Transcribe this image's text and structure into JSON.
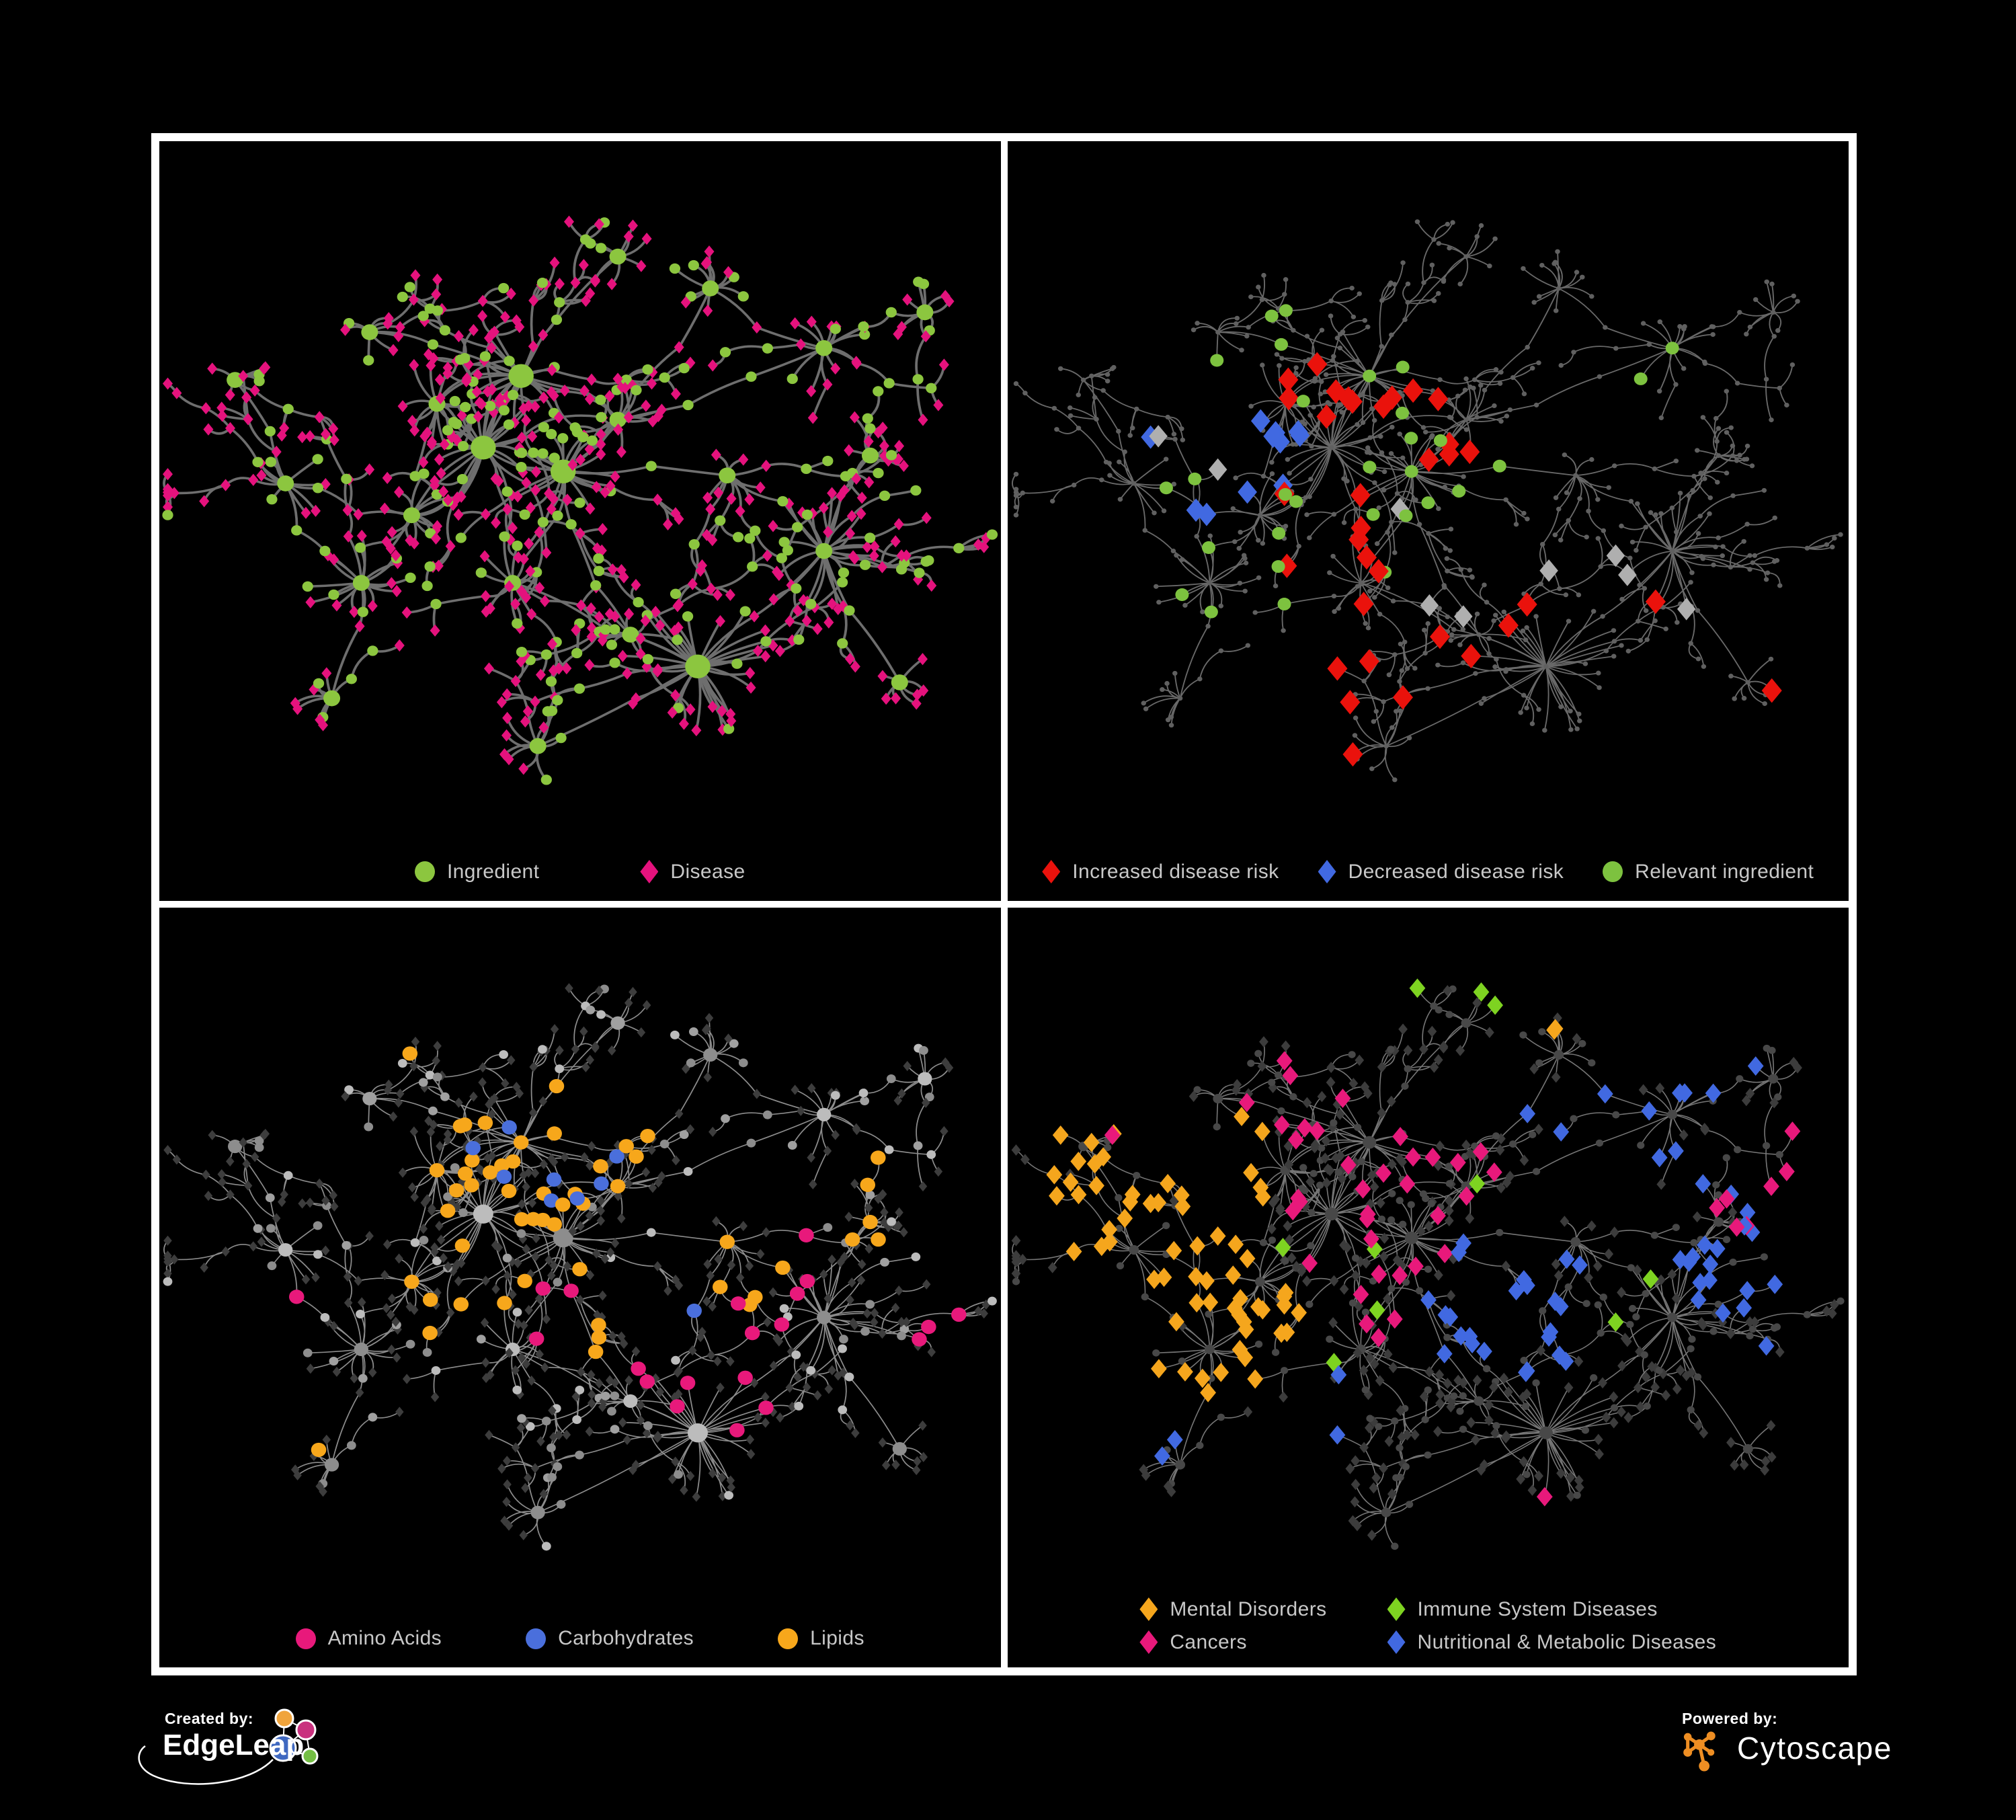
{
  "poster": {
    "background": "#000000",
    "frame_color": "#ffffff",
    "legend_text_color": "#C8C8C8"
  },
  "footer": {
    "created_by": "Created by:",
    "edgeleap_wordmark": "EdgeLeap",
    "powered_by": "Powered by:",
    "cytoscape_wordmark": "Cytoscape",
    "edgeleap_logo_colors": [
      "#F0A43C",
      "#C9317E",
      "#3F68C0",
      "#74BE44"
    ],
    "cytoscape_logo_color": "#EE8E23"
  },
  "chart_data": [
    {
      "type": "network",
      "panel": "top-left",
      "description": "Ingredient-disease association network",
      "legend": [
        {
          "label": "Ingredient",
          "shape": "circle",
          "color": "#8CC63F"
        },
        {
          "label": "Disease",
          "shape": "diamond",
          "color": "#E5127D"
        }
      ],
      "style": {
        "edge": "#6E6E6E",
        "edgeW": 3,
        "circle": {
          "color": "#8CC63F",
          "r": 6.5,
          "rMid": 10,
          "rHub": 15
        },
        "diamond": {
          "color": "#E5127D",
          "r": 6
        }
      }
    },
    {
      "type": "network",
      "panel": "top-right",
      "description": "Disease risk highlights on the same network",
      "legend": [
        {
          "label": "Increased disease risk",
          "shape": "diamond",
          "color": "#EA120C"
        },
        {
          "label": "Decreased disease risk",
          "shape": "diamond",
          "color": "#4169E1"
        },
        {
          "label": "Relevant ingredient",
          "shape": "circle",
          "color": "#7DC23F"
        }
      ],
      "style": {
        "edge": "#696969",
        "edgeW": 1.5,
        "mode": "dots",
        "base": {
          "color": "#606060",
          "r": 3
        },
        "highlights": [
          {
            "shape": "diamond",
            "color": "#EA120C",
            "r": 12,
            "count": 34,
            "regions": [
              [
                470,
                500,
                160
              ],
              [
                640,
                590,
                120
              ],
              [
                460,
                700,
                90
              ],
              [
                735,
                600,
                60
              ],
              [
                905,
                300,
                50
              ],
              [
                430,
                350,
                120
              ],
              [
                880,
                690,
                70
              ]
            ]
          },
          {
            "shape": "diamond",
            "color": "#4169E1",
            "r": 11.5,
            "count": 11,
            "regions": [
              [
                255,
                390,
                95
              ],
              [
                823,
                300,
                50
              ]
            ]
          },
          {
            "shape": "diamond",
            "color": "#AFAFAF",
            "r": 11,
            "count": 9,
            "regions": [
              [
                230,
                430,
                100
              ],
              [
                450,
                550,
                110
              ],
              [
                740,
                560,
                100
              ],
              [
                620,
                330,
                70
              ]
            ]
          },
          {
            "shape": "circle",
            "color": "#7DC23F",
            "r": 8,
            "count": 30,
            "regions": [
              [
                370,
                420,
                220
              ],
              [
                789,
                312,
                60
              ],
              [
                763,
                618,
                60
              ],
              [
                200,
                560,
                110
              ],
              [
                90,
                300,
                55
              ]
            ]
          }
        ]
      }
    },
    {
      "type": "network",
      "panel": "bottom-left",
      "description": "Nutrient class highlights",
      "legend": [
        {
          "label": "Amino Acids",
          "shape": "circle",
          "color": "#E8197B"
        },
        {
          "label": "Carbohydrates",
          "shape": "circle",
          "color": "#4A6FDC"
        },
        {
          "label": "Lipids",
          "shape": "circle",
          "color": "#F7A71B"
        }
      ],
      "style": {
        "edge": "#8C8C8C",
        "edgeW": 1.4,
        "circle": {
          "colors": [
            "#BcBcBc",
            "#A0A0A0",
            "#8D8D8D"
          ],
          "color": "#A0A0A0",
          "r": 5.5,
          "rMid": 8.5,
          "rHub": 12
        },
        "diamond": {
          "color": "#3D3D3D",
          "r": 5
        },
        "highlights": [
          {
            "shape": "circle",
            "color": "#F7A71B",
            "r": 9,
            "count": 52,
            "regions": [
              [
                470,
                330,
                120
              ],
              [
                430,
                340,
                110
              ],
              [
                350,
                430,
                110
              ],
              [
                540,
                490,
                90
              ],
              [
                631,
                755,
                70
              ],
              [
                260,
                120,
                80
              ],
              [
                850,
                390,
                80
              ],
              [
                940,
                140,
                40
              ],
              [
                175,
                690,
                50
              ],
              [
                670,
                460,
                80
              ]
            ]
          },
          {
            "shape": "circle",
            "color": "#4A6FDC",
            "r": 9,
            "count": 13,
            "regions": [
              [
                460,
                300,
                90
              ],
              [
                637,
                480,
                50
              ],
              [
                129,
                185,
                40
              ]
            ]
          },
          {
            "shape": "circle",
            "color": "#E8197B",
            "r": 9,
            "count": 20,
            "regions": [
              [
                640,
                570,
                110
              ],
              [
                460,
                530,
                60
              ],
              [
                110,
                530,
                70
              ],
              [
                60,
                670,
                60
              ],
              [
                687,
                70,
                50
              ],
              [
                941,
                540,
                45
              ],
              [
                750,
                440,
                50
              ],
              [
                390,
                745,
                80
              ],
              [
                258,
                146,
                40
              ]
            ]
          }
        ]
      }
    },
    {
      "type": "network",
      "panel": "bottom-right",
      "description": "Disease category highlights",
      "legend_columns": 2,
      "legend": [
        {
          "label": "Mental Disorders",
          "shape": "diamond",
          "color": "#F5A61D"
        },
        {
          "label": "Immune System Diseases",
          "shape": "diamond",
          "color": "#7ED321"
        },
        {
          "label": "Cancers",
          "shape": "diamond",
          "color": "#E8197B"
        },
        {
          "label": "Nutritional & Metabolic Diseases",
          "shape": "diamond",
          "color": "#4169E1"
        }
      ],
      "style": {
        "edge": "#767676",
        "edgeW": 1.3,
        "circle": {
          "color": "#484848",
          "r": 4.5,
          "rMid": 6,
          "rHub": 8
        },
        "diamond": {
          "color": "#3C3C3C",
          "r": 5.5
        },
        "highlights": [
          {
            "shape": "diamond",
            "color": "#F5A61D",
            "r": 9.5,
            "count": 64,
            "regions": [
              [
                160,
                420,
                130
              ],
              [
                85,
                350,
                80
              ],
              [
                260,
                520,
                100
              ],
              [
                240,
                330,
                80
              ],
              [
                640,
                120,
                55
              ],
              [
                430,
                60,
                55
              ],
              [
                60,
                590,
                60
              ]
            ]
          },
          {
            "shape": "diamond",
            "color": "#E8197B",
            "r": 9.5,
            "count": 44,
            "regions": [
              [
                400,
                430,
                140
              ],
              [
                500,
                360,
                110
              ],
              [
                320,
                270,
                90
              ],
              [
                900,
                330,
                80
              ],
              [
                660,
                770,
                60
              ],
              [
                140,
                290,
                50
              ]
            ]
          },
          {
            "shape": "diamond",
            "color": "#4169E1",
            "r": 9.5,
            "count": 56,
            "regions": [
              [
                590,
                490,
                110
              ],
              [
                730,
                270,
                120
              ],
              [
                840,
                130,
                90
              ],
              [
                280,
                620,
                130
              ],
              [
                100,
                580,
                90
              ],
              [
                860,
                420,
                90
              ],
              [
                600,
                50,
                70
              ],
              [
                150,
                60,
                70
              ],
              [
                930,
                560,
                60
              ]
            ]
          },
          {
            "shape": "diamond",
            "color": "#7ED321",
            "r": 9.5,
            "count": 10,
            "regions": [
              [
                330,
                390,
                200
              ],
              [
                660,
                440,
                160
              ],
              [
                480,
                120,
                120
              ],
              [
                880,
                700,
                60
              ]
            ]
          }
        ]
      }
    }
  ],
  "network_layout": {
    "seed": 13,
    "space": [
      1000,
      860
    ],
    "hubs": [
      [
        430,
        295,
        24,
        62,
        1
      ],
      [
        385,
        385,
        28,
        70,
        1
      ],
      [
        480,
        415,
        22,
        58,
        1
      ],
      [
        330,
        330,
        16,
        50,
        0
      ],
      [
        545,
        350,
        13,
        46,
        0
      ],
      [
        300,
        470,
        15,
        52,
        0
      ],
      [
        240,
        555,
        17,
        56,
        0
      ],
      [
        420,
        555,
        11,
        46,
        0
      ],
      [
        640,
        660,
        32,
        80,
        1
      ],
      [
        790,
        515,
        24,
        64,
        0
      ],
      [
        150,
        430,
        11,
        46,
        0
      ],
      [
        655,
        185,
        11,
        42,
        0
      ],
      [
        790,
        260,
        14,
        50,
        0
      ],
      [
        910,
        215,
        9,
        36,
        0
      ],
      [
        545,
        145,
        8,
        38,
        0
      ],
      [
        205,
        700,
        9,
        40,
        0
      ],
      [
        450,
        760,
        11,
        44,
        0
      ],
      [
        880,
        680,
        7,
        36,
        0
      ],
      [
        90,
        300,
        6,
        32,
        0
      ],
      [
        560,
        620,
        9,
        40,
        0
      ],
      [
        675,
        420,
        10,
        42,
        0
      ],
      [
        250,
        240,
        8,
        36,
        0
      ],
      [
        845,
        395,
        8,
        34,
        0
      ]
    ],
    "links": [
      [
        0,
        1
      ],
      [
        1,
        2
      ],
      [
        0,
        3
      ],
      [
        2,
        4
      ],
      [
        1,
        5
      ],
      [
        5,
        6
      ],
      [
        2,
        7
      ],
      [
        7,
        8
      ],
      [
        8,
        9
      ],
      [
        6,
        10
      ],
      [
        4,
        11
      ],
      [
        11,
        12
      ],
      [
        12,
        13
      ],
      [
        0,
        14
      ],
      [
        6,
        15
      ],
      [
        8,
        16
      ],
      [
        9,
        17
      ],
      [
        10,
        18
      ],
      [
        2,
        19
      ],
      [
        2,
        20
      ],
      [
        20,
        9
      ],
      [
        0,
        21
      ],
      [
        9,
        22
      ],
      [
        1,
        3
      ],
      [
        4,
        12
      ],
      [
        5,
        10
      ],
      [
        19,
        8
      ],
      [
        0,
        4
      ],
      [
        1,
        7
      ]
    ]
  }
}
